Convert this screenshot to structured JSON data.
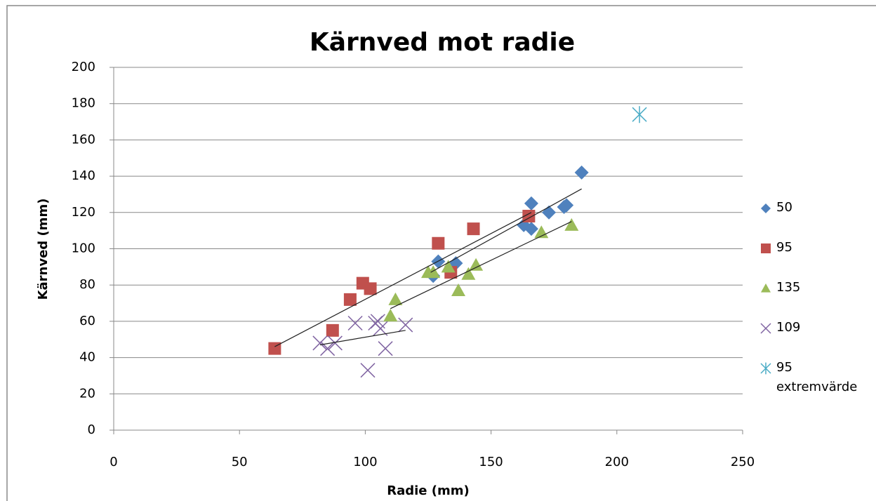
{
  "chart_data": {
    "type": "scatter",
    "title": "Kärnved mot radie",
    "xlabel": "Radie (mm)",
    "ylabel": "Kärnved (mm)",
    "xlim": [
      0,
      250
    ],
    "xticks": [
      0,
      50,
      100,
      150,
      200,
      250
    ],
    "ylim": [
      0,
      200
    ],
    "yticks": [
      0,
      20,
      40,
      60,
      80,
      100,
      120,
      140,
      160,
      180,
      200
    ],
    "grid": true,
    "legend": "right",
    "series": [
      {
        "name": "50",
        "color": "#4f81bd",
        "marker": "diamond",
        "x": [
          127,
          129,
          136,
          163,
          166,
          166,
          173,
          179,
          180,
          186
        ],
        "y": [
          85,
          93,
          92,
          113,
          125,
          111,
          120,
          123,
          124,
          142
        ],
        "trendline": {
          "x": [
            126,
            186
          ],
          "y": [
            87,
            133
          ]
        }
      },
      {
        "name": "95",
        "color": "#c0504d",
        "marker": "square",
        "x": [
          64,
          87,
          94,
          99,
          102,
          129,
          134,
          143,
          165
        ],
        "y": [
          45,
          55,
          72,
          81,
          78,
          103,
          87,
          111,
          118
        ],
        "trendline": {
          "x": [
            64,
            166
          ],
          "y": [
            46,
            120
          ]
        }
      },
      {
        "name": "135",
        "color": "#9bbb59",
        "marker": "triangle",
        "x": [
          110,
          112,
          125,
          127,
          133,
          137,
          141,
          144,
          170,
          182
        ],
        "y": [
          63,
          72,
          87,
          87,
          90,
          77,
          86,
          91,
          109,
          113
        ],
        "trendline": {
          "x": [
            110,
            182
          ],
          "y": [
            67,
            115
          ]
        }
      },
      {
        "name": "109",
        "color": "#8064a2",
        "marker": "x",
        "x": [
          82,
          85,
          88,
          96,
          101,
          104,
          105,
          106,
          108,
          116
        ],
        "y": [
          48,
          45,
          48,
          59,
          33,
          59,
          60,
          56,
          45,
          58
        ],
        "trendline": {
          "x": [
            82,
            116
          ],
          "y": [
            47,
            55
          ]
        }
      },
      {
        "name": "95 extremvärde",
        "color": "#4bacc6",
        "marker": "star",
        "x": [
          209
        ],
        "y": [
          174
        ]
      }
    ]
  }
}
